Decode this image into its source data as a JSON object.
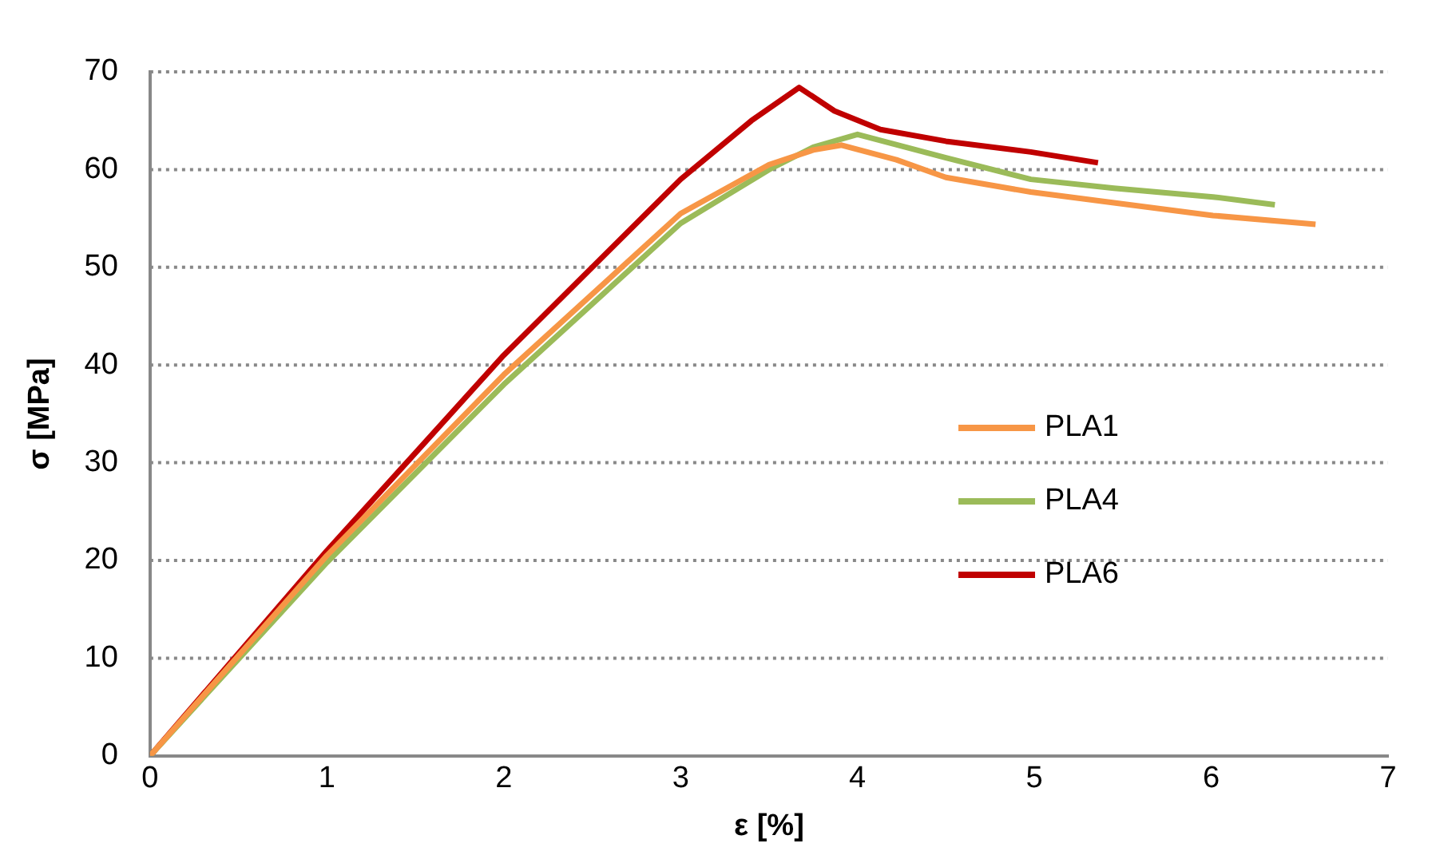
{
  "chart_data": {
    "type": "line",
    "xlabel": "ε [%]",
    "ylabel": "σ [MPa]",
    "xlim": [
      0,
      7
    ],
    "xticks": [
      0,
      1,
      2,
      3,
      4,
      5,
      6,
      7
    ],
    "ylim": [
      0,
      70
    ],
    "yticks": [
      0,
      10,
      20,
      30,
      40,
      50,
      60,
      70
    ],
    "grid": "y",
    "legend": "right",
    "marker": "none",
    "line_style": "solid",
    "series": [
      {
        "name": "PLA1",
        "color": "#f79646",
        "x": [
          0,
          1,
          2,
          3,
          3.5,
          3.75,
          3.91,
          4.22,
          4.5,
          4.98,
          5.45,
          6.01,
          6.59
        ],
        "values": [
          0,
          20.5,
          39,
          55.5,
          60.5,
          62,
          62.5,
          61,
          59.2,
          57.7,
          56.6,
          55.3,
          54.4
        ]
      },
      {
        "name": "PLA4",
        "color": "#9bbb59",
        "x": [
          0,
          1,
          2,
          3,
          3.5,
          3.75,
          4,
          4.5,
          4.98,
          5.45,
          6.01,
          6.36
        ],
        "values": [
          0,
          19.8,
          38,
          54.5,
          60,
          62.3,
          63.6,
          61.2,
          59,
          58.1,
          57.2,
          56.4
        ]
      },
      {
        "name": "PLA6",
        "color": "#c00000",
        "x": [
          0,
          1,
          2,
          3,
          3.4,
          3.67,
          3.87,
          4.13,
          4.5,
          4.98,
          5.36
        ],
        "values": [
          0,
          21,
          41,
          59,
          65,
          68.4,
          66,
          64.1,
          62.9,
          61.8,
          60.7
        ]
      }
    ]
  }
}
